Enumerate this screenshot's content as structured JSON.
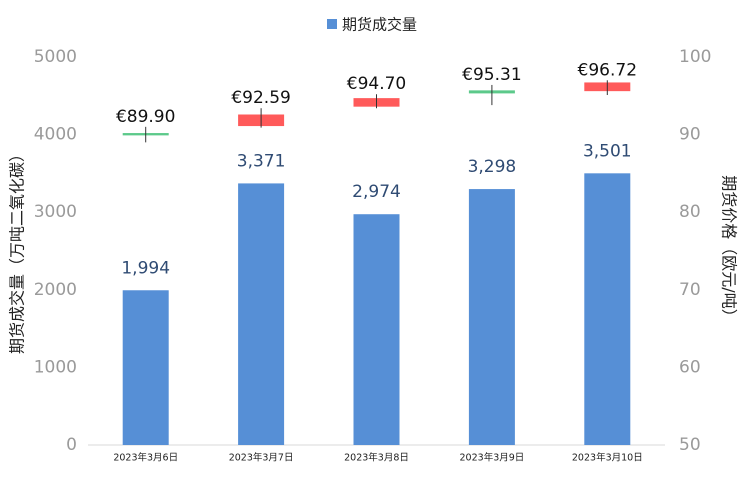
{
  "chart_data": {
    "type": "bar",
    "categories": [
      "2023年3月6日",
      "2023年3月7日",
      "2023年3月8日",
      "2023年3月9日",
      "2023年3月10日"
    ],
    "series": [
      {
        "name": "期货成交量",
        "color": "#568fd6",
        "values": [
          1994,
          3371,
          2974,
          3298,
          3501
        ],
        "value_labels": [
          "1,994",
          "3,371",
          "2,974",
          "3,298",
          "3,501"
        ]
      }
    ],
    "ylabel": "期货成交量（万吨二氧化碳）",
    "ylim": [
      0,
      5000
    ],
    "yticks": [
      0,
      1000,
      2000,
      3000,
      4000,
      5000
    ],
    "y2label": "期货价格（欧元/吨）",
    "y2lim": [
      50,
      100
    ],
    "y2ticks": [
      50,
      60,
      70,
      80,
      90,
      100
    ],
    "overlay": {
      "type": "candlestick",
      "axis": "y2",
      "values": [
        89.9,
        92.59,
        94.7,
        95.31,
        96.72
      ],
      "value_labels": [
        "€89.90",
        "€92.59",
        "€94.70",
        "€95.31",
        "€96.72"
      ],
      "close": [
        90.2,
        91.1,
        93.6,
        95.7,
        95.6
      ],
      "high": [
        91.0,
        93.4,
        95.2,
        96.4,
        97.0
      ],
      "low": [
        89.0,
        90.9,
        93.4,
        93.8,
        95.1
      ],
      "up_color": "#5cc98a",
      "down_color": "#ff5a5a"
    },
    "legend": "top",
    "grid": false
  }
}
